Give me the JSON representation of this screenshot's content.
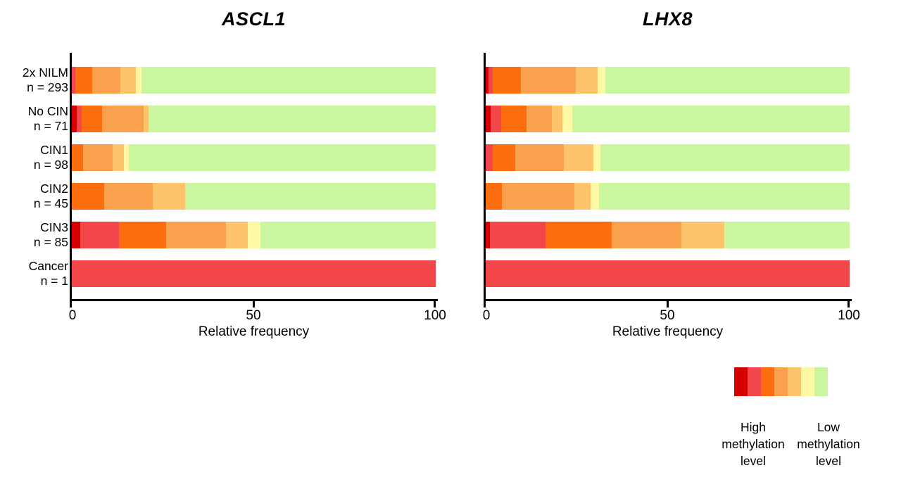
{
  "titles": {
    "left": "ASCL1",
    "right": "LHX8"
  },
  "x_axis": {
    "label": "Relative frequency",
    "ticks": [
      "0",
      "50",
      "100"
    ]
  },
  "categories": [
    {
      "name": "2x NILM",
      "n_label": "n = 293"
    },
    {
      "name": "No CIN",
      "n_label": "n = 71"
    },
    {
      "name": "CIN1",
      "n_label": "n = 98"
    },
    {
      "name": "CIN2",
      "n_label": "n = 45"
    },
    {
      "name": "CIN3",
      "n_label": "n = 85"
    },
    {
      "name": "Cancer",
      "n_label": "n = 1"
    }
  ],
  "legend": {
    "high_label": "High methylation level",
    "low_label": "Low methylation level",
    "colors": [
      "#D50000",
      "#F2464B",
      "#FB6D0F",
      "#FAA14D",
      "#FEC46B",
      "#FCF8A4",
      "#C9F69E"
    ]
  },
  "chart_data": [
    {
      "type": "bar",
      "stacked": true,
      "orientation": "horizontal",
      "title": "ASCL1",
      "xlabel": "Relative frequency",
      "xlim": [
        0,
        100
      ],
      "xticks": [
        0,
        50,
        100
      ],
      "grid": false,
      "categories": [
        "2x NILM (n = 293)",
        "No CIN (n = 71)",
        "CIN1 (n = 98)",
        "CIN2 (n = 45)",
        "CIN3 (n = 85)",
        "Cancer (n = 1)"
      ],
      "series": [
        {
          "name": "methylation bin 1 highest",
          "color": "#D50000",
          "values": [
            0,
            1.4,
            0,
            0,
            2.4,
            0
          ]
        },
        {
          "name": "methylation bin 2",
          "color": "#F2464B",
          "values": [
            1.0,
            1.4,
            0,
            0,
            10.6,
            100
          ]
        },
        {
          "name": "methylation bin 3",
          "color": "#FB6D0F",
          "values": [
            4.6,
            5.6,
            3.1,
            8.9,
            12.9,
            0
          ]
        },
        {
          "name": "methylation bin 4",
          "color": "#FAA14D",
          "values": [
            7.7,
            11.3,
            8.2,
            13.3,
            16.5,
            0
          ]
        },
        {
          "name": "methylation bin 5",
          "color": "#FEC46B",
          "values": [
            4.3,
            1.4,
            3.0,
            8.9,
            5.9,
            0
          ]
        },
        {
          "name": "methylation bin 6",
          "color": "#FCF8A4",
          "values": [
            1.6,
            0,
            1.3,
            0,
            3.5,
            0
          ]
        },
        {
          "name": "methylation bin 7 lowest",
          "color": "#C9F69E",
          "values": [
            80.8,
            78.9,
            84.4,
            68.9,
            48.2,
            0
          ]
        }
      ]
    },
    {
      "type": "bar",
      "stacked": true,
      "orientation": "horizontal",
      "title": "LHX8",
      "xlabel": "Relative frequency",
      "xlim": [
        0,
        100
      ],
      "xticks": [
        0,
        50,
        100
      ],
      "grid": false,
      "categories": [
        "2x NILM (n = 293)",
        "No CIN (n = 71)",
        "CIN1 (n = 98)",
        "CIN2 (n = 45)",
        "CIN3 (n = 85)",
        "Cancer (n = 1)"
      ],
      "series": [
        {
          "name": "methylation bin 1 highest",
          "color": "#D50000",
          "values": [
            0.7,
            1.4,
            0,
            0,
            1.2,
            0
          ]
        },
        {
          "name": "methylation bin 2",
          "color": "#F2464B",
          "values": [
            1.2,
            2.8,
            2.0,
            0,
            15.3,
            100
          ]
        },
        {
          "name": "methylation bin 3",
          "color": "#FB6D0F",
          "values": [
            7.7,
            7.0,
            6.1,
            4.4,
            18.1,
            0
          ]
        },
        {
          "name": "methylation bin 4",
          "color": "#FAA14D",
          "values": [
            15.2,
            7.0,
            13.3,
            20.0,
            19.2,
            0
          ]
        },
        {
          "name": "methylation bin 5",
          "color": "#FEC46B",
          "values": [
            6.0,
            2.8,
            8.2,
            4.5,
            11.8,
            0
          ]
        },
        {
          "name": "methylation bin 6",
          "color": "#FCF8A4",
          "values": [
            2.0,
            2.8,
            2.0,
            2.2,
            0,
            0
          ]
        },
        {
          "name": "methylation bin 7 lowest",
          "color": "#C9F69E",
          "values": [
            67.2,
            76.2,
            68.4,
            68.9,
            34.4,
            0
          ]
        }
      ]
    }
  ]
}
